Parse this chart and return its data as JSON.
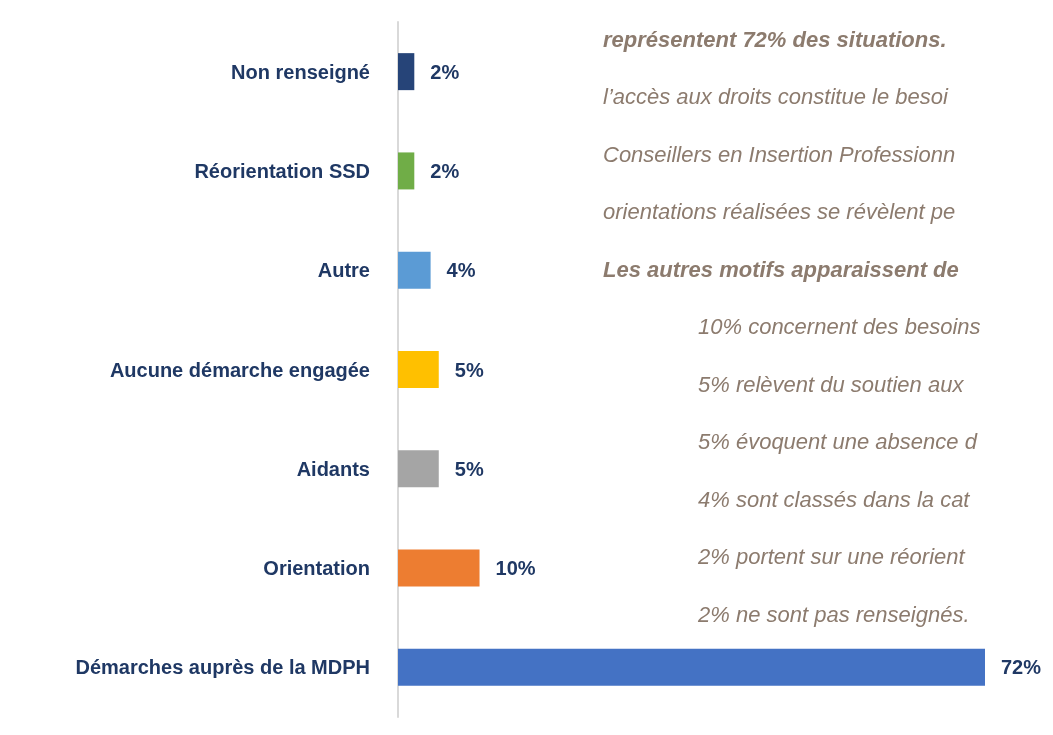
{
  "chart_data": {
    "type": "bar",
    "orientation": "horizontal",
    "categories": [
      "Non renseigné",
      "Réorientation SSD",
      "Autre",
      "Aucune démarche engagée",
      "Aidants",
      "Orientation",
      "Démarches auprès de la MDPH"
    ],
    "values": [
      2,
      2,
      4,
      5,
      5,
      10,
      72
    ],
    "colors": [
      "#264478",
      "#70ad47",
      "#5b9bd5",
      "#ffc000",
      "#a5a5a5",
      "#ed7d31",
      "#4472c4"
    ],
    "value_labels": [
      "2%",
      "2%",
      "4%",
      "5%",
      "5%",
      "10%",
      "72%"
    ],
    "annotations": [
      "représentent 72% des situations.",
      "l’accès aux droits constitue le besoi",
      "Conseillers en Insertion Professionn",
      "orientations réalisées se révèlent pe",
      "Les autres motifs apparaissent de",
      "10% concernent des besoins",
      "5% relèvent du soutien aux",
      "5% évoquent une absence d",
      "4% sont classés dans la cat",
      "2% portent sur une réorient",
      "2% ne sont pas renseignés."
    ]
  }
}
